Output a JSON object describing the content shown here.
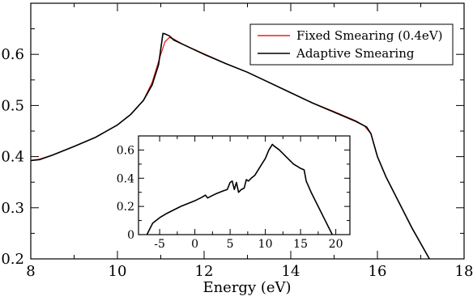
{
  "chart_data": [
    {
      "type": "line",
      "xlabel": "Energy (eV)",
      "ylabel": "",
      "xlim": [
        8,
        18
      ],
      "ylim": [
        0.2,
        0.7
      ],
      "x_ticks": [
        8,
        10,
        12,
        14,
        16,
        18
      ],
      "y_ticks": [
        0.2,
        0.3,
        0.4,
        0.5,
        0.6
      ],
      "x_tick_labels": [
        "8",
        "10",
        "12",
        "14",
        "16",
        "18"
      ],
      "y_tick_labels": [
        "0.2",
        "0.3",
        "0.4",
        "0.5",
        "0.6"
      ],
      "grid": false,
      "legend_position": "top-right",
      "series": [
        {
          "name": "Fixed Smearing (0.4eV)",
          "color": "#e8201a",
          "x": [
            7.95,
            8.2,
            8.5,
            9.0,
            9.5,
            10.0,
            10.3,
            10.6,
            10.8,
            11.0,
            11.1,
            11.2,
            11.3,
            11.5,
            12.0,
            12.5,
            13.0,
            13.5,
            14.0,
            14.5,
            15.0,
            15.5,
            15.7,
            15.85,
            16.0,
            16.2,
            16.5,
            16.8,
            17.0,
            17.2
          ],
          "y": [
            0.392,
            0.395,
            0.403,
            0.42,
            0.438,
            0.462,
            0.482,
            0.51,
            0.545,
            0.6,
            0.625,
            0.633,
            0.63,
            0.62,
            0.601,
            0.582,
            0.565,
            0.545,
            0.525,
            0.505,
            0.488,
            0.47,
            0.46,
            0.445,
            0.4,
            0.36,
            0.31,
            0.26,
            0.23,
            0.2
          ]
        },
        {
          "name": "Adaptive Smearing",
          "color": "#000000",
          "x": [
            7.95,
            8.2,
            8.5,
            9.0,
            9.5,
            10.0,
            10.3,
            10.6,
            10.8,
            10.95,
            11.05,
            11.1,
            11.2,
            11.3,
            11.5,
            12.0,
            12.5,
            13.0,
            13.5,
            14.0,
            14.5,
            15.0,
            15.5,
            15.75,
            15.85,
            16.0,
            16.2,
            16.5,
            16.8,
            17.0,
            17.2
          ],
          "y": [
            0.392,
            0.394,
            0.403,
            0.42,
            0.438,
            0.462,
            0.482,
            0.51,
            0.54,
            0.58,
            0.641,
            0.64,
            0.636,
            0.628,
            0.62,
            0.6,
            0.582,
            0.565,
            0.545,
            0.525,
            0.505,
            0.487,
            0.469,
            0.458,
            0.445,
            0.4,
            0.36,
            0.31,
            0.26,
            0.23,
            0.2
          ]
        }
      ]
    },
    {
      "type": "line",
      "title": "",
      "xlim": [
        -8,
        22
      ],
      "ylim": [
        0,
        0.7
      ],
      "x_ticks": [
        -5,
        0,
        5,
        10,
        15,
        20
      ],
      "y_ticks": [
        0,
        0.2,
        0.4,
        0.6
      ],
      "x_tick_labels": [
        "-5",
        "0",
        "5",
        "10",
        "15",
        "20"
      ],
      "y_tick_labels": [
        "0",
        "0.2",
        "0.4",
        "0.6"
      ],
      "grid": false,
      "series": [
        {
          "color": "#000000",
          "x": [
            -6.8,
            -6.5,
            -6.0,
            -5.0,
            -4.0,
            -3.0,
            -2.0,
            -1.0,
            0.0,
            1.0,
            1.5,
            1.8,
            2.2,
            3.0,
            4.0,
            4.6,
            5.0,
            5.3,
            5.6,
            5.9,
            6.2,
            6.6,
            7.0,
            7.3,
            7.6,
            8.0,
            8.5,
            9.0,
            9.5,
            10.0,
            10.5,
            11.0,
            11.2,
            12.0,
            13.0,
            14.0,
            15.0,
            15.5,
            15.8,
            16.5,
            17.5,
            18.5,
            19.0,
            19.5
          ],
          "y": [
            0.0,
            0.03,
            0.08,
            0.12,
            0.15,
            0.175,
            0.2,
            0.22,
            0.24,
            0.265,
            0.28,
            0.26,
            0.27,
            0.29,
            0.31,
            0.32,
            0.37,
            0.38,
            0.32,
            0.37,
            0.3,
            0.32,
            0.33,
            0.39,
            0.38,
            0.4,
            0.42,
            0.46,
            0.5,
            0.54,
            0.6,
            0.64,
            0.63,
            0.6,
            0.55,
            0.5,
            0.47,
            0.46,
            0.38,
            0.3,
            0.2,
            0.1,
            0.05,
            0.0
          ]
        }
      ]
    }
  ]
}
